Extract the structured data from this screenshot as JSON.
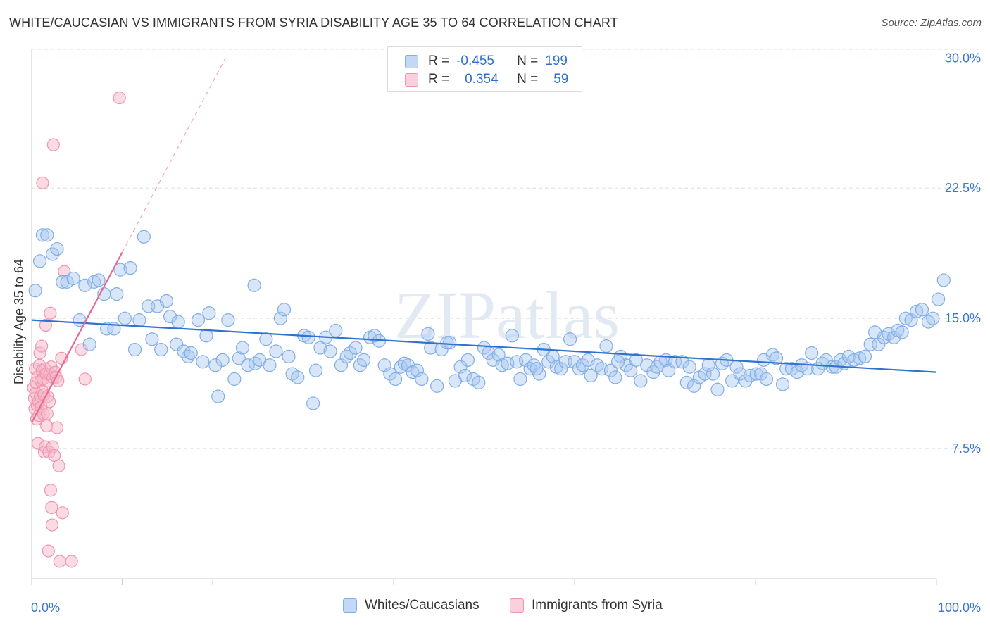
{
  "title": "WHITE/CAUCASIAN VS IMMIGRANTS FROM SYRIA DISABILITY AGE 35 TO 64 CORRELATION CHART",
  "source": "Source: ZipAtlas.com",
  "watermark": "ZIPatlas",
  "colors": {
    "blue_fill": "#a9c8f0",
    "blue_stroke": "#7faee6",
    "blue_line": "#2f73d0",
    "pink_fill": "#f6b8ca",
    "pink_stroke": "#ee94ae",
    "pink_line": "#e86a92",
    "axis_text": "#3a78cc",
    "grid": "#dddddd"
  },
  "legend": {
    "rows": [
      {
        "r_label": "R =",
        "r_value": "-0.455",
        "n_label": "N =",
        "n_value": "199"
      },
      {
        "r_label": "R =",
        "r_value": "0.354",
        "n_label": "N =",
        "n_value": "59"
      }
    ]
  },
  "bottom_legend": [
    "Whites/Caucasians",
    "Immigrants from Syria"
  ],
  "chart_data": {
    "type": "scatter",
    "title": "WHITE/CAUCASIAN VS IMMIGRANTS FROM SYRIA DISABILITY AGE 35 TO 64 CORRELATION CHART",
    "xlabel": "",
    "ylabel": "Disability Age 35 to 64",
    "xlim": [
      0,
      100
    ],
    "ylim": [
      0,
      30.5
    ],
    "x_tick_labels": [
      "0.0%",
      "100.0%"
    ],
    "y_ticks": [
      7.5,
      15.0,
      22.5,
      30.0
    ],
    "y_tick_labels": [
      "7.5%",
      "15.0%",
      "22.5%",
      "30.0%"
    ],
    "grid": true,
    "legend_position": "top-center",
    "series": [
      {
        "name": "Whites/Caucasians",
        "r": -0.455,
        "n": 199,
        "trend": {
          "x": [
            0,
            100
          ],
          "y": [
            14.9,
            11.9
          ]
        },
        "points": [
          [
            0.4,
            16.6
          ],
          [
            0.9,
            18.3
          ],
          [
            1.2,
            19.8
          ],
          [
            1.7,
            19.8
          ],
          [
            2.3,
            18.7
          ],
          [
            2.8,
            19.0
          ],
          [
            3.4,
            17.1
          ],
          [
            3.9,
            17.1
          ],
          [
            4.6,
            17.3
          ],
          [
            5.3,
            14.9
          ],
          [
            5.9,
            16.9
          ],
          [
            6.4,
            13.5
          ],
          [
            6.9,
            17.1
          ],
          [
            7.4,
            17.2
          ],
          [
            8.0,
            16.4
          ],
          [
            8.3,
            14.4
          ],
          [
            9.1,
            14.4
          ],
          [
            9.4,
            16.4
          ],
          [
            9.8,
            17.8
          ],
          [
            10.3,
            15.0
          ],
          [
            10.9,
            17.9
          ],
          [
            11.4,
            13.2
          ],
          [
            11.9,
            14.9
          ],
          [
            12.4,
            19.7
          ],
          [
            12.9,
            15.7
          ],
          [
            13.3,
            13.8
          ],
          [
            13.9,
            15.7
          ],
          [
            14.3,
            13.2
          ],
          [
            14.9,
            16.0
          ],
          [
            15.3,
            15.1
          ],
          [
            16.0,
            13.5
          ],
          [
            16.2,
            14.8
          ],
          [
            16.8,
            13.1
          ],
          [
            17.3,
            12.8
          ],
          [
            17.6,
            13.0
          ],
          [
            18.4,
            14.9
          ],
          [
            18.9,
            12.5
          ],
          [
            19.3,
            14.0
          ],
          [
            19.6,
            15.3
          ],
          [
            20.3,
            12.3
          ],
          [
            20.6,
            10.5
          ],
          [
            21.1,
            12.6
          ],
          [
            21.7,
            14.9
          ],
          [
            22.4,
            11.5
          ],
          [
            22.9,
            12.7
          ],
          [
            23.3,
            13.3
          ],
          [
            23.9,
            12.3
          ],
          [
            24.6,
            16.9
          ],
          [
            24.7,
            12.4
          ],
          [
            25.2,
            12.6
          ],
          [
            25.9,
            13.8
          ],
          [
            26.3,
            12.3
          ],
          [
            27.0,
            13.1
          ],
          [
            27.5,
            15.0
          ],
          [
            27.9,
            15.5
          ],
          [
            28.4,
            12.8
          ],
          [
            28.8,
            11.8
          ],
          [
            29.4,
            11.6
          ],
          [
            30.1,
            14.0
          ],
          [
            30.6,
            13.9
          ],
          [
            31.1,
            10.1
          ],
          [
            31.4,
            12.0
          ],
          [
            31.9,
            13.3
          ],
          [
            32.5,
            13.9
          ],
          [
            33.0,
            13.1
          ],
          [
            33.6,
            14.3
          ],
          [
            34.2,
            12.3
          ],
          [
            34.8,
            12.8
          ],
          [
            35.2,
            13.0
          ],
          [
            35.8,
            13.3
          ],
          [
            36.3,
            12.3
          ],
          [
            36.7,
            12.6
          ],
          [
            37.4,
            13.9
          ],
          [
            37.9,
            14.0
          ],
          [
            38.4,
            13.7
          ],
          [
            39.0,
            12.3
          ],
          [
            39.6,
            11.8
          ],
          [
            40.2,
            11.5
          ],
          [
            40.8,
            12.2
          ],
          [
            41.2,
            12.4
          ],
          [
            41.6,
            12.3
          ],
          [
            42.1,
            11.9
          ],
          [
            42.6,
            12.0
          ],
          [
            43.1,
            11.5
          ],
          [
            43.8,
            14.1
          ],
          [
            44.1,
            13.3
          ],
          [
            44.8,
            11.1
          ],
          [
            45.3,
            13.2
          ],
          [
            45.9,
            13.6
          ],
          [
            46.2,
            13.6
          ],
          [
            46.8,
            11.4
          ],
          [
            47.4,
            12.2
          ],
          [
            47.9,
            11.7
          ],
          [
            48.2,
            12.6
          ],
          [
            48.8,
            11.5
          ],
          [
            49.4,
            11.3
          ],
          [
            50.0,
            13.3
          ],
          [
            50.5,
            13.0
          ],
          [
            51.0,
            12.6
          ],
          [
            51.6,
            12.9
          ],
          [
            52.0,
            12.3
          ],
          [
            52.6,
            12.4
          ],
          [
            53.1,
            14.0
          ],
          [
            53.6,
            12.5
          ],
          [
            54.0,
            11.5
          ],
          [
            54.6,
            12.6
          ],
          [
            55.1,
            12.1
          ],
          [
            55.5,
            12.3
          ],
          [
            56.1,
            11.8
          ],
          [
            56.6,
            13.2
          ],
          [
            57.1,
            12.5
          ],
          [
            57.6,
            12.8
          ],
          [
            58.0,
            12.2
          ],
          [
            58.5,
            12.1
          ],
          [
            59.0,
            12.5
          ],
          [
            59.5,
            13.8
          ],
          [
            60.0,
            12.5
          ],
          [
            60.5,
            12.1
          ],
          [
            60.9,
            12.3
          ],
          [
            61.5,
            12.6
          ],
          [
            61.8,
            11.7
          ],
          [
            62.5,
            12.3
          ],
          [
            63.0,
            12.1
          ],
          [
            63.5,
            13.4
          ],
          [
            64.0,
            12.0
          ],
          [
            64.5,
            11.6
          ],
          [
            65.1,
            12.8
          ],
          [
            65.7,
            12.3
          ],
          [
            66.2,
            12.0
          ],
          [
            66.8,
            12.6
          ],
          [
            67.3,
            11.4
          ],
          [
            68.0,
            12.3
          ],
          [
            68.7,
            11.9
          ],
          [
            69.1,
            12.2
          ],
          [
            69.5,
            12.5
          ],
          [
            70.1,
            12.6
          ],
          [
            70.4,
            12.0
          ],
          [
            71.1,
            12.5
          ],
          [
            71.9,
            12.5
          ],
          [
            72.4,
            11.3
          ],
          [
            72.7,
            12.2
          ],
          [
            73.2,
            11.1
          ],
          [
            73.8,
            11.6
          ],
          [
            74.4,
            11.8
          ],
          [
            74.8,
            12.3
          ],
          [
            75.3,
            11.8
          ],
          [
            75.8,
            10.9
          ],
          [
            76.3,
            12.4
          ],
          [
            76.8,
            12.6
          ],
          [
            77.4,
            11.4
          ],
          [
            77.9,
            12.2
          ],
          [
            78.3,
            11.8
          ],
          [
            78.9,
            11.4
          ],
          [
            79.4,
            11.7
          ],
          [
            80.1,
            11.8
          ],
          [
            80.6,
            11.8
          ],
          [
            81.2,
            11.5
          ],
          [
            81.9,
            12.9
          ],
          [
            82.3,
            12.7
          ],
          [
            83.0,
            11.2
          ],
          [
            83.4,
            12.1
          ],
          [
            84.0,
            12.1
          ],
          [
            84.6,
            11.9
          ],
          [
            85.1,
            12.3
          ],
          [
            85.7,
            12.1
          ],
          [
            86.2,
            13.0
          ],
          [
            86.9,
            12.1
          ],
          [
            87.4,
            12.4
          ],
          [
            87.8,
            12.6
          ],
          [
            88.5,
            12.2
          ],
          [
            88.9,
            12.2
          ],
          [
            89.4,
            12.6
          ],
          [
            89.8,
            12.4
          ],
          [
            90.3,
            12.8
          ],
          [
            90.9,
            12.6
          ],
          [
            91.5,
            12.7
          ],
          [
            92.1,
            12.8
          ],
          [
            92.7,
            13.5
          ],
          [
            93.2,
            14.2
          ],
          [
            93.6,
            13.5
          ],
          [
            94.2,
            13.9
          ],
          [
            94.7,
            14.1
          ],
          [
            95.3,
            13.9
          ],
          [
            95.7,
            14.3
          ],
          [
            96.2,
            14.2
          ],
          [
            96.6,
            15.0
          ],
          [
            97.2,
            14.9
          ],
          [
            97.8,
            15.4
          ],
          [
            98.4,
            15.5
          ],
          [
            99.1,
            14.8
          ],
          [
            99.6,
            15.0
          ],
          [
            100.2,
            16.1
          ],
          [
            100.8,
            17.2
          ],
          [
            55.8,
            12.1
          ],
          [
            64.8,
            12.5
          ],
          [
            80.9,
            12.6
          ]
        ]
      },
      {
        "name": "Immigrants from Syria",
        "r": 0.354,
        "n": 59,
        "trend": {
          "x": [
            0,
            10
          ],
          "y": [
            9.0,
            18.8
          ]
        },
        "points": [
          [
            0.2,
            11.0
          ],
          [
            0.3,
            10.4
          ],
          [
            0.35,
            9.8
          ],
          [
            0.4,
            12.1
          ],
          [
            0.45,
            10.7
          ],
          [
            0.5,
            11.3
          ],
          [
            0.55,
            9.2
          ],
          [
            0.6,
            10.0
          ],
          [
            0.65,
            11.6
          ],
          [
            0.7,
            7.8
          ],
          [
            0.75,
            10.2
          ],
          [
            0.8,
            9.4
          ],
          [
            0.85,
            12.3
          ],
          [
            0.9,
            13.0
          ],
          [
            0.95,
            10.5
          ],
          [
            1.0,
            11.4
          ],
          [
            1.05,
            9.9
          ],
          [
            1.1,
            13.4
          ],
          [
            1.15,
            12.0
          ],
          [
            1.2,
            10.8
          ],
          [
            1.25,
            11.5
          ],
          [
            1.3,
            9.5
          ],
          [
            1.35,
            10.6
          ],
          [
            1.4,
            7.3
          ],
          [
            1.45,
            12.1
          ],
          [
            1.5,
            7.6
          ],
          [
            1.55,
            14.6
          ],
          [
            1.6,
            11.8
          ],
          [
            1.65,
            8.8
          ],
          [
            1.7,
            9.5
          ],
          [
            1.75,
            10.5
          ],
          [
            1.8,
            11.4
          ],
          [
            1.85,
            1.6
          ],
          [
            1.9,
            7.3
          ],
          [
            1.95,
            10.2
          ],
          [
            2.0,
            11.8
          ],
          [
            2.05,
            15.3
          ],
          [
            2.1,
            5.1
          ],
          [
            2.15,
            12.2
          ],
          [
            2.2,
            4.1
          ],
          [
            2.25,
            3.1
          ],
          [
            2.3,
            7.6
          ],
          [
            2.35,
            11.6
          ],
          [
            2.4,
            25.0
          ],
          [
            2.5,
            7.1
          ],
          [
            2.6,
            11.9
          ],
          [
            2.7,
            11.6
          ],
          [
            2.9,
            11.4
          ],
          [
            2.8,
            8.7
          ],
          [
            3.0,
            6.5
          ],
          [
            3.1,
            1.0
          ],
          [
            3.3,
            12.7
          ],
          [
            3.4,
            3.8
          ],
          [
            3.6,
            17.7
          ],
          [
            4.4,
            1.0
          ],
          [
            5.5,
            13.2
          ],
          [
            5.9,
            11.5
          ],
          [
            1.2,
            22.8
          ],
          [
            9.7,
            27.7
          ]
        ]
      }
    ]
  }
}
